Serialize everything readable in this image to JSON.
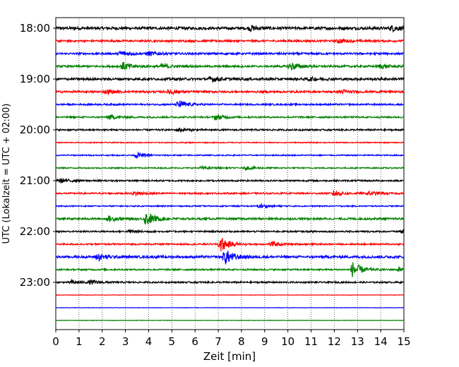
{
  "chart_data": {
    "type": "line",
    "title": "",
    "xlabel": "Zeit  [min]",
    "ylabel": "UTC (Lokalzeit = UTC + 02:00)",
    "xlim": [
      0,
      15
    ],
    "xticks": [
      "0",
      "1",
      "2",
      "3",
      "4",
      "5",
      "6",
      "7",
      "8",
      "9",
      "10",
      "11",
      "12",
      "13",
      "14",
      "15"
    ],
    "yticks": [
      {
        "row": 0,
        "label": "18:00"
      },
      {
        "row": 4,
        "label": "19:00"
      },
      {
        "row": 8,
        "label": "20:00"
      },
      {
        "row": 12,
        "label": "21:00"
      },
      {
        "row": 16,
        "label": "22:00"
      },
      {
        "row": 20,
        "label": "23:00"
      }
    ],
    "x_grid": true,
    "row_minutes": 15,
    "start_time": "18:00",
    "trace_colors": [
      "#000000",
      "#ff0000",
      "#0000ff",
      "#008000"
    ],
    "traces": [
      {
        "start": "18:00",
        "color": "#000000",
        "noise": 0.35,
        "bursts": [
          {
            "t": 8.4,
            "a": 0.6
          },
          {
            "t": 14.5,
            "a": 0.6
          }
        ]
      },
      {
        "start": "18:15",
        "color": "#ff0000",
        "noise": 0.25,
        "bursts": [
          {
            "t": 12.2,
            "a": 0.5
          }
        ]
      },
      {
        "start": "18:30",
        "color": "#0000ff",
        "noise": 0.25,
        "bursts": [
          {
            "t": 2.8,
            "a": 0.7
          },
          {
            "t": 4.0,
            "a": 0.5
          }
        ]
      },
      {
        "start": "18:45",
        "color": "#008000",
        "noise": 0.25,
        "bursts": [
          {
            "t": 2.9,
            "a": 1.0
          },
          {
            "t": 4.6,
            "a": 0.6
          },
          {
            "t": 10.1,
            "a": 1.1
          },
          {
            "t": 14.0,
            "a": 0.5
          }
        ]
      },
      {
        "start": "19:00",
        "color": "#000000",
        "noise": 0.3,
        "bursts": [
          {
            "t": 6.7,
            "a": 0.7
          },
          {
            "t": 10.9,
            "a": 0.4
          }
        ]
      },
      {
        "start": "19:15",
        "color": "#ff0000",
        "noise": 0.25,
        "bursts": [
          {
            "t": 2.2,
            "a": 0.5
          },
          {
            "t": 4.9,
            "a": 0.6
          },
          {
            "t": 12.3,
            "a": 0.5
          }
        ]
      },
      {
        "start": "19:30",
        "color": "#0000ff",
        "noise": 0.2,
        "bursts": [
          {
            "t": 5.3,
            "a": 1.0
          }
        ]
      },
      {
        "start": "19:45",
        "color": "#008000",
        "noise": 0.2,
        "bursts": [
          {
            "t": 2.3,
            "a": 0.6
          },
          {
            "t": 6.9,
            "a": 0.7
          }
        ]
      },
      {
        "start": "20:00",
        "color": "#000000",
        "noise": 0.2,
        "bursts": [
          {
            "t": 5.3,
            "a": 0.5
          }
        ]
      },
      {
        "start": "20:15",
        "color": "#ff0000",
        "noise": 0.12,
        "bursts": []
      },
      {
        "start": "20:30",
        "color": "#0000ff",
        "noise": 0.15,
        "bursts": [
          {
            "t": 3.5,
            "a": 0.6
          }
        ]
      },
      {
        "start": "20:45",
        "color": "#008000",
        "noise": 0.15,
        "bursts": [
          {
            "t": 6.3,
            "a": 0.4
          },
          {
            "t": 8.2,
            "a": 0.4
          }
        ]
      },
      {
        "start": "21:00",
        "color": "#000000",
        "noise": 0.2,
        "bursts": [
          {
            "t": 0.2,
            "a": 0.5
          }
        ]
      },
      {
        "start": "21:15",
        "color": "#ff0000",
        "noise": 0.2,
        "bursts": [
          {
            "t": 3.4,
            "a": 0.5
          },
          {
            "t": 12.0,
            "a": 0.8
          },
          {
            "t": 13.5,
            "a": 0.5
          }
        ]
      },
      {
        "start": "21:30",
        "color": "#0000ff",
        "noise": 0.15,
        "bursts": [
          {
            "t": 8.8,
            "a": 0.5
          }
        ]
      },
      {
        "start": "21:45",
        "color": "#008000",
        "noise": 0.25,
        "bursts": [
          {
            "t": 3.9,
            "a": 1.7
          },
          {
            "t": 2.3,
            "a": 0.6
          }
        ]
      },
      {
        "start": "22:00",
        "color": "#000000",
        "noise": 0.2,
        "bursts": [
          {
            "t": 3.2,
            "a": 0.4
          },
          {
            "t": 14.9,
            "a": 0.5
          }
        ]
      },
      {
        "start": "22:15",
        "color": "#ff0000",
        "noise": 0.2,
        "bursts": [
          {
            "t": 7.1,
            "a": 1.9
          },
          {
            "t": 9.3,
            "a": 0.6
          }
        ]
      },
      {
        "start": "22:30",
        "color": "#0000ff",
        "noise": 0.3,
        "bursts": [
          {
            "t": 1.8,
            "a": 0.9
          },
          {
            "t": 7.3,
            "a": 1.9
          }
        ]
      },
      {
        "start": "22:45",
        "color": "#008000",
        "noise": 0.2,
        "bursts": [
          {
            "t": 12.8,
            "a": 2.0
          },
          {
            "t": 14.8,
            "a": 0.6
          }
        ]
      },
      {
        "start": "23:00",
        "color": "#000000",
        "noise": 0.2,
        "bursts": [
          {
            "t": 0.7,
            "a": 0.5
          },
          {
            "t": 1.5,
            "a": 0.5
          }
        ]
      },
      {
        "start": "23:15",
        "color": "#ff0000",
        "noise": 0.05,
        "bursts": []
      },
      {
        "start": "23:30",
        "color": "#0000ff",
        "noise": 0.05,
        "bursts": []
      },
      {
        "start": "23:45",
        "color": "#008000",
        "noise": 0.05,
        "bursts": []
      }
    ]
  }
}
